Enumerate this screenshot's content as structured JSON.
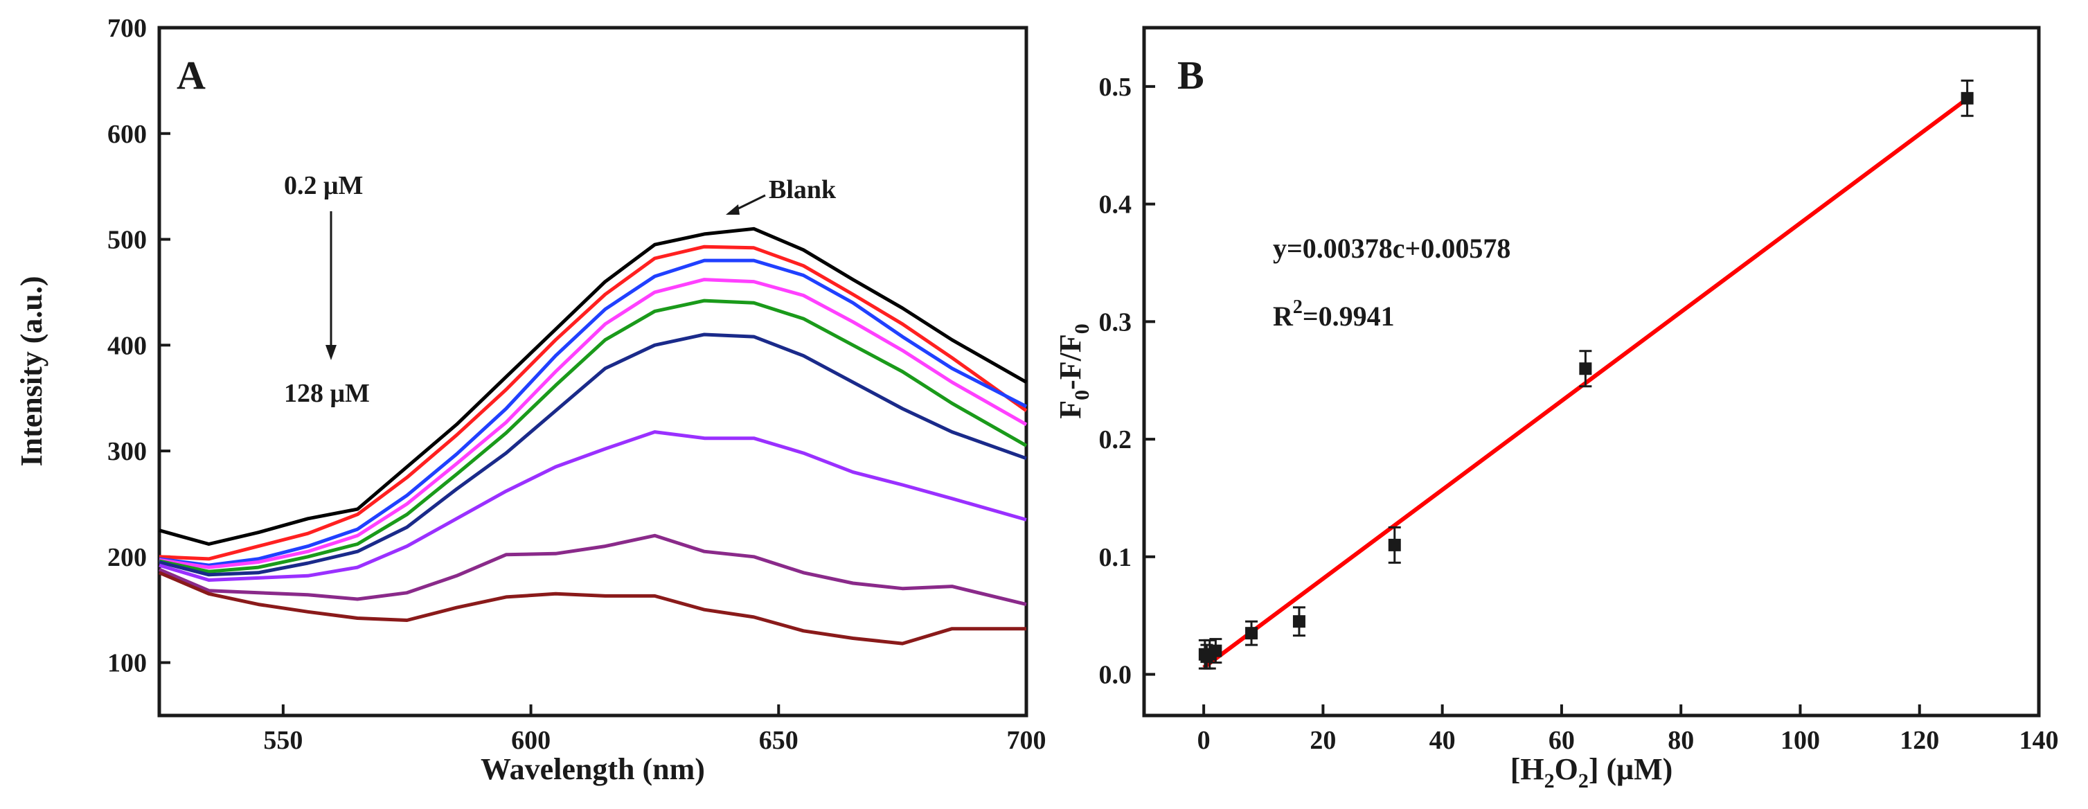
{
  "chart_data": [
    {
      "type": "line",
      "panel_label": "A",
      "xlabel": "Wavelength (nm)",
      "ylabel": "Intensity (a.u.)",
      "xlim": [
        525,
        700
      ],
      "ylim": [
        50,
        700
      ],
      "xticks": [
        550,
        600,
        650,
        700
      ],
      "yticks": [
        100,
        200,
        300,
        400,
        500,
        600,
        700
      ],
      "grid": false,
      "annotations": {
        "top_conc": "0.2 μM",
        "bottom_conc": "128 μM",
        "blank": "Blank"
      },
      "series": [
        {
          "name": "Blank",
          "color": "#000000",
          "x": [
            525,
            535,
            545,
            555,
            565,
            575,
            585,
            595,
            605,
            615,
            625,
            635,
            645,
            655,
            665,
            675,
            685,
            700
          ],
          "y": [
            225,
            212,
            223,
            236,
            245,
            285,
            325,
            370,
            415,
            460,
            495,
            505,
            510,
            490,
            462,
            435,
            405,
            365
          ]
        },
        {
          "color": "#ff2020",
          "x": [
            525,
            535,
            545,
            555,
            565,
            575,
            585,
            595,
            605,
            615,
            625,
            635,
            645,
            655,
            665,
            675,
            685,
            700
          ],
          "y": [
            200,
            198,
            210,
            222,
            240,
            275,
            315,
            358,
            405,
            448,
            482,
            493,
            492,
            475,
            448,
            420,
            388,
            338
          ]
        },
        {
          "color": "#2040ff",
          "x": [
            525,
            535,
            545,
            555,
            565,
            575,
            585,
            595,
            605,
            615,
            625,
            635,
            645,
            655,
            665,
            675,
            685,
            700
          ],
          "y": [
            198,
            192,
            198,
            210,
            226,
            258,
            297,
            340,
            390,
            434,
            465,
            480,
            480,
            466,
            440,
            408,
            378,
            342
          ]
        },
        {
          "color": "#ff40ff",
          "x": [
            525,
            535,
            545,
            555,
            565,
            575,
            585,
            595,
            605,
            615,
            625,
            635,
            645,
            655,
            665,
            675,
            685,
            700
          ],
          "y": [
            197,
            190,
            195,
            205,
            220,
            250,
            288,
            327,
            375,
            420,
            450,
            462,
            460,
            447,
            422,
            395,
            365,
            325
          ]
        },
        {
          "color": "#1a9a1a",
          "x": [
            525,
            535,
            545,
            555,
            565,
            575,
            585,
            595,
            605,
            615,
            625,
            635,
            645,
            655,
            665,
            675,
            685,
            700
          ],
          "y": [
            196,
            186,
            190,
            200,
            212,
            240,
            278,
            317,
            362,
            405,
            432,
            442,
            440,
            425,
            400,
            375,
            345,
            305
          ]
        },
        {
          "color": "#1a2a8a",
          "x": [
            525,
            535,
            545,
            555,
            565,
            575,
            585,
            595,
            605,
            615,
            625,
            635,
            645,
            655,
            665,
            675,
            685,
            700
          ],
          "y": [
            195,
            183,
            185,
            194,
            205,
            228,
            264,
            298,
            338,
            378,
            400,
            410,
            408,
            390,
            365,
            340,
            318,
            293
          ]
        },
        {
          "color": "#9a30ff",
          "x": [
            525,
            535,
            545,
            555,
            565,
            575,
            585,
            595,
            605,
            615,
            625,
            635,
            645,
            655,
            665,
            675,
            685,
            700
          ],
          "y": [
            192,
            178,
            180,
            182,
            190,
            210,
            236,
            262,
            285,
            302,
            318,
            312,
            312,
            298,
            280,
            268,
            255,
            235
          ]
        },
        {
          "color": "#8a2a8a",
          "x": [
            525,
            535,
            545,
            555,
            565,
            575,
            585,
            595,
            605,
            615,
            625,
            635,
            645,
            655,
            665,
            675,
            685,
            700
          ],
          "y": [
            188,
            168,
            166,
            164,
            160,
            166,
            182,
            202,
            203,
            210,
            220,
            205,
            200,
            185,
            175,
            170,
            172,
            155
          ]
        },
        {
          "color": "#8a1a1a",
          "x": [
            525,
            535,
            545,
            555,
            565,
            575,
            585,
            595,
            605,
            615,
            625,
            635,
            645,
            655,
            665,
            675,
            685,
            700
          ],
          "y": [
            185,
            165,
            155,
            148,
            142,
            140,
            152,
            162,
            165,
            163,
            163,
            150,
            143,
            130,
            123,
            118,
            132,
            132
          ]
        }
      ]
    },
    {
      "type": "scatter",
      "panel_label": "B",
      "xlabel": "[H2O2] (μM)",
      "ylabel": "F0-F/F0",
      "xlim": [
        -10,
        140
      ],
      "ylim": [
        -0.035,
        0.55
      ],
      "xticks": [
        0,
        20,
        40,
        60,
        80,
        100,
        120,
        140
      ],
      "yticks": [
        "0.0",
        "0.1",
        "0.2",
        "0.3",
        "0.4",
        "0.5"
      ],
      "grid": false,
      "points": [
        {
          "x": 0.2,
          "y": 0.017,
          "err": 0.012
        },
        {
          "x": 0.5,
          "y": 0.015,
          "err": 0.01
        },
        {
          "x": 1,
          "y": 0.017,
          "err": 0.012
        },
        {
          "x": 2,
          "y": 0.02,
          "err": 0.01
        },
        {
          "x": 8,
          "y": 0.035,
          "err": 0.01
        },
        {
          "x": 16,
          "y": 0.045,
          "err": 0.012
        },
        {
          "x": 32,
          "y": 0.11,
          "err": 0.015
        },
        {
          "x": 64,
          "y": 0.26,
          "err": 0.015
        },
        {
          "x": 128,
          "y": 0.49,
          "err": 0.015
        }
      ],
      "fit": {
        "slope": 0.00378,
        "intercept": 0.00578,
        "color": "#ff0000"
      },
      "equation": "y=0.00378c+0.00578",
      "r2_label": "R",
      "r2_value": "=0.9941"
    }
  ]
}
